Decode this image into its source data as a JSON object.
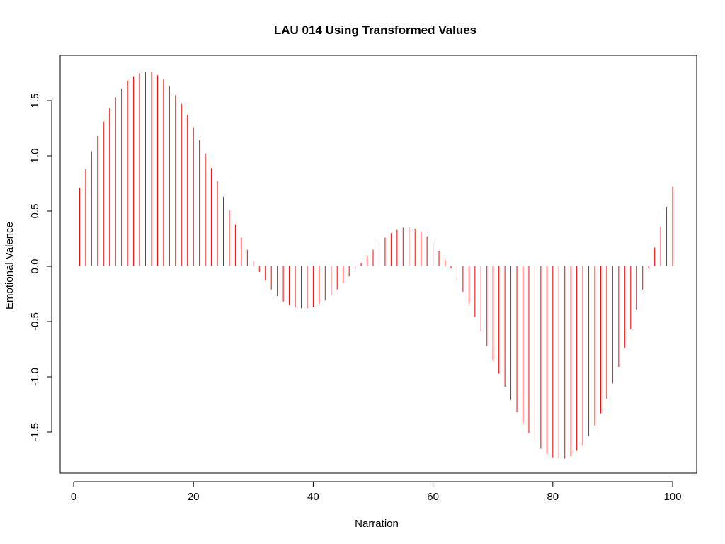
{
  "chart_data": {
    "type": "bar",
    "title": "LAU 014 Using Transformed Values",
    "xlabel": "Narration",
    "ylabel": "Emotional Valence",
    "xlim": [
      0,
      100
    ],
    "ylim": [
      -1.75,
      1.75
    ],
    "x_ticks": [
      0,
      20,
      40,
      60,
      80,
      100
    ],
    "y_ticks": [
      -1.5,
      -1.0,
      -0.5,
      0.0,
      0.5,
      1.0,
      1.5
    ],
    "x_tick_labels": [
      "0",
      "20",
      "40",
      "60",
      "80",
      "100"
    ],
    "y_tick_labels": [
      "-1.5",
      "-1.0",
      "-0.5",
      "0.0",
      "0.5",
      "1.0",
      "1.5"
    ],
    "grid": false,
    "legend": "none",
    "series_color": "#ff0000",
    "x": [
      1,
      2,
      3,
      4,
      5,
      6,
      7,
      8,
      9,
      10,
      11,
      12,
      13,
      14,
      15,
      16,
      17,
      18,
      19,
      20,
      21,
      22,
      23,
      24,
      25,
      26,
      27,
      28,
      29,
      30,
      31,
      32,
      33,
      34,
      35,
      36,
      37,
      38,
      39,
      40,
      41,
      42,
      43,
      44,
      45,
      46,
      47,
      48,
      49,
      50,
      51,
      52,
      53,
      54,
      55,
      56,
      57,
      58,
      59,
      60,
      61,
      62,
      63,
      64,
      65,
      66,
      67,
      68,
      69,
      70,
      71,
      72,
      73,
      74,
      75,
      76,
      77,
      78,
      79,
      80,
      81,
      82,
      83,
      84,
      85,
      86,
      87,
      88,
      89,
      90,
      91,
      92,
      93,
      94,
      95,
      96,
      97,
      98,
      99,
      100
    ],
    "values": [
      0.71,
      0.88,
      1.04,
      1.18,
      1.31,
      1.43,
      1.53,
      1.61,
      1.68,
      1.72,
      1.75,
      1.76,
      1.76,
      1.73,
      1.69,
      1.63,
      1.55,
      1.47,
      1.37,
      1.26,
      1.14,
      1.02,
      0.89,
      0.77,
      0.63,
      0.51,
      0.38,
      0.26,
      0.15,
      0.04,
      -0.05,
      -0.13,
      -0.21,
      -0.27,
      -0.32,
      -0.35,
      -0.37,
      -0.38,
      -0.38,
      -0.37,
      -0.34,
      -0.31,
      -0.26,
      -0.21,
      -0.15,
      -0.09,
      -0.03,
      0.03,
      0.09,
      0.15,
      0.21,
      0.26,
      0.3,
      0.33,
      0.35,
      0.35,
      0.34,
      0.31,
      0.27,
      0.21,
      0.14,
      0.06,
      -0.02,
      -0.12,
      -0.23,
      -0.34,
      -0.46,
      -0.59,
      -0.72,
      -0.85,
      -0.97,
      -1.09,
      -1.21,
      -1.32,
      -1.42,
      -1.51,
      -1.59,
      -1.65,
      -1.7,
      -1.73,
      -1.74,
      -1.74,
      -1.72,
      -1.67,
      -1.62,
      -1.54,
      -1.44,
      -1.33,
      -1.2,
      -1.06,
      -0.91,
      -0.74,
      -0.57,
      -0.39,
      -0.21,
      -0.02,
      0.17,
      0.36,
      0.54,
      0.72
    ]
  }
}
